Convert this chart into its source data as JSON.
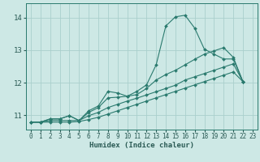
{
  "xlabel": "Humidex (Indice chaleur)",
  "xlim": [
    -0.5,
    23.5
  ],
  "ylim": [
    10.55,
    14.45
  ],
  "yticks": [
    11,
    12,
    13,
    14
  ],
  "xticks": [
    0,
    1,
    2,
    3,
    4,
    5,
    6,
    7,
    8,
    9,
    10,
    11,
    12,
    13,
    14,
    15,
    16,
    17,
    18,
    19,
    20,
    21,
    22,
    23
  ],
  "bg_color": "#cde8e5",
  "grid_color": "#aacfcc",
  "line_color": "#2a7a6e",
  "line1_x": [
    0,
    1,
    2,
    3,
    4,
    5,
    6,
    7,
    8,
    9,
    10,
    11,
    12,
    13,
    14,
    15,
    16,
    17,
    18,
    19,
    20,
    21,
    22
  ],
  "line1_y": [
    10.78,
    10.78,
    10.88,
    10.88,
    10.98,
    10.83,
    11.13,
    11.28,
    11.73,
    11.68,
    11.58,
    11.73,
    11.93,
    12.55,
    13.75,
    14.03,
    14.08,
    13.68,
    13.03,
    12.88,
    12.73,
    12.73,
    12.03
  ],
  "line2_x": [
    0,
    1,
    2,
    3,
    4,
    5,
    6,
    7,
    8,
    9,
    10,
    11,
    12,
    13,
    14,
    15,
    16,
    17,
    18,
    19,
    20,
    21,
    22
  ],
  "line2_y": [
    10.78,
    10.78,
    10.88,
    10.88,
    10.98,
    10.83,
    11.08,
    11.23,
    11.53,
    11.55,
    11.58,
    11.63,
    11.82,
    12.08,
    12.25,
    12.38,
    12.55,
    12.72,
    12.88,
    12.98,
    13.08,
    12.78,
    12.03
  ],
  "line3_x": [
    0,
    1,
    2,
    3,
    4,
    5,
    6,
    7,
    8,
    9,
    10,
    11,
    12,
    13,
    14,
    15,
    16,
    17,
    18,
    19,
    20,
    21,
    22
  ],
  "line3_y": [
    10.78,
    10.78,
    10.83,
    10.83,
    10.83,
    10.83,
    10.98,
    11.08,
    11.23,
    11.33,
    11.43,
    11.52,
    11.62,
    11.72,
    11.82,
    11.92,
    12.08,
    12.18,
    12.28,
    12.38,
    12.48,
    12.58,
    12.03
  ],
  "line4_x": [
    0,
    1,
    2,
    3,
    4,
    5,
    6,
    7,
    8,
    9,
    10,
    11,
    12,
    13,
    14,
    15,
    16,
    17,
    18,
    19,
    20,
    21,
    22
  ],
  "line4_y": [
    10.78,
    10.78,
    10.78,
    10.78,
    10.78,
    10.8,
    10.86,
    10.93,
    11.03,
    11.13,
    11.23,
    11.33,
    11.43,
    11.53,
    11.63,
    11.73,
    11.83,
    11.93,
    12.03,
    12.13,
    12.23,
    12.33,
    12.03
  ]
}
